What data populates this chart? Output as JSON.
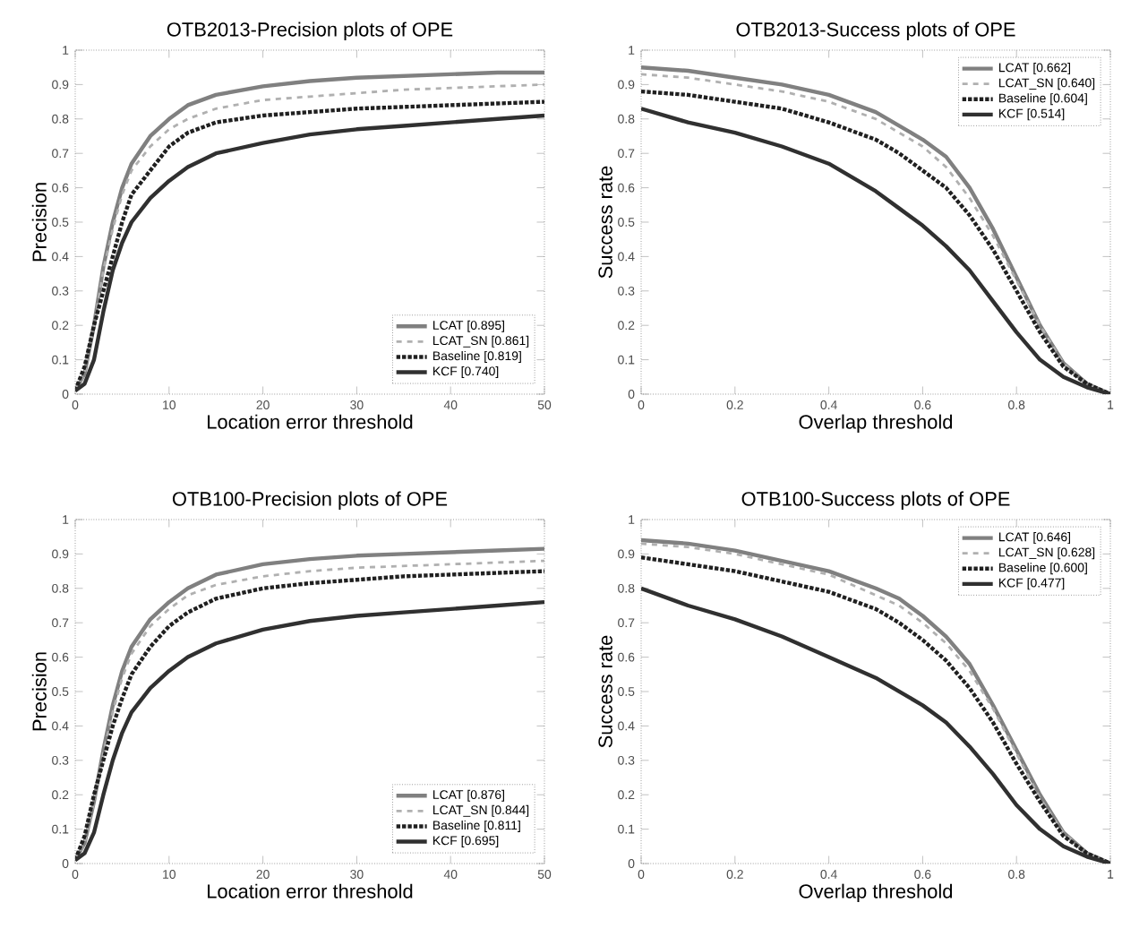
{
  "chart_data": [
    {
      "type": "line",
      "title": "OTB2013-Precision plots of OPE",
      "xlabel": "Location error threshold",
      "ylabel": "Precision",
      "xlim": [
        0,
        50
      ],
      "ylim": [
        0,
        1
      ],
      "xticks": [
        0,
        10,
        20,
        30,
        40,
        50
      ],
      "yticks": [
        0,
        0.1,
        0.2,
        0.3,
        0.4,
        0.5,
        0.6,
        0.7,
        0.8,
        0.9,
        1
      ],
      "legend": "bottom right",
      "x": [
        0,
        1,
        2,
        3,
        4,
        5,
        6,
        8,
        10,
        12,
        15,
        20,
        25,
        30,
        35,
        40,
        45,
        50
      ],
      "series": [
        {
          "name": "LCAT [0.895]",
          "color": "#808080",
          "line_style": "solid",
          "values": [
            0.01,
            0.06,
            0.2,
            0.37,
            0.5,
            0.6,
            0.67,
            0.75,
            0.8,
            0.84,
            0.87,
            0.895,
            0.91,
            0.92,
            0.925,
            0.93,
            0.935,
            0.935
          ]
        },
        {
          "name": "LCAT_SN [0.861]",
          "color": "#b0b0b0",
          "line_style": "dashed",
          "values": [
            0.01,
            0.06,
            0.2,
            0.36,
            0.48,
            0.58,
            0.65,
            0.72,
            0.77,
            0.8,
            0.83,
            0.855,
            0.865,
            0.875,
            0.885,
            0.89,
            0.895,
            0.9
          ]
        },
        {
          "name": "Baseline [0.819]",
          "color": "#202020",
          "line_style": "dotted",
          "values": [
            0.01,
            0.08,
            0.2,
            0.3,
            0.4,
            0.5,
            0.58,
            0.65,
            0.72,
            0.76,
            0.79,
            0.81,
            0.82,
            0.83,
            0.835,
            0.84,
            0.845,
            0.85
          ]
        },
        {
          "name": "KCF [0.740]",
          "color": "#303030",
          "line_style": "solid",
          "values": [
            0.01,
            0.03,
            0.1,
            0.24,
            0.36,
            0.44,
            0.5,
            0.57,
            0.62,
            0.66,
            0.7,
            0.73,
            0.755,
            0.77,
            0.78,
            0.79,
            0.8,
            0.81
          ]
        }
      ]
    },
    {
      "type": "line",
      "title": "OTB2013-Success plots of OPE",
      "xlabel": "Overlap threshold",
      "ylabel": "Success rate",
      "xlim": [
        0,
        1
      ],
      "ylim": [
        0,
        1
      ],
      "xticks": [
        0,
        0.2,
        0.4,
        0.6,
        0.8,
        1
      ],
      "yticks": [
        0,
        0.1,
        0.2,
        0.3,
        0.4,
        0.5,
        0.6,
        0.7,
        0.8,
        0.9,
        1
      ],
      "legend": "top right",
      "x": [
        0,
        0.1,
        0.2,
        0.3,
        0.4,
        0.5,
        0.55,
        0.6,
        0.65,
        0.7,
        0.75,
        0.8,
        0.85,
        0.9,
        0.95,
        1
      ],
      "series": [
        {
          "name": "LCAT [0.662]",
          "color": "#808080",
          "line_style": "solid",
          "values": [
            0.95,
            0.94,
            0.92,
            0.9,
            0.87,
            0.82,
            0.78,
            0.74,
            0.69,
            0.6,
            0.48,
            0.34,
            0.2,
            0.09,
            0.03,
            0
          ]
        },
        {
          "name": "LCAT_SN [0.640]",
          "color": "#b0b0b0",
          "line_style": "dashed",
          "values": [
            0.93,
            0.92,
            0.9,
            0.88,
            0.85,
            0.8,
            0.76,
            0.72,
            0.66,
            0.57,
            0.46,
            0.33,
            0.2,
            0.09,
            0.03,
            0
          ]
        },
        {
          "name": "Baseline [0.604]",
          "color": "#202020",
          "line_style": "dotted",
          "values": [
            0.88,
            0.87,
            0.85,
            0.83,
            0.79,
            0.74,
            0.7,
            0.65,
            0.6,
            0.52,
            0.42,
            0.3,
            0.18,
            0.08,
            0.03,
            0
          ]
        },
        {
          "name": "KCF [0.514]",
          "color": "#303030",
          "line_style": "solid",
          "values": [
            0.83,
            0.79,
            0.76,
            0.72,
            0.67,
            0.59,
            0.54,
            0.49,
            0.43,
            0.36,
            0.27,
            0.18,
            0.1,
            0.05,
            0.02,
            0
          ]
        }
      ]
    },
    {
      "type": "line",
      "title": "OTB100-Precision plots of OPE",
      "xlabel": "Location error threshold",
      "ylabel": "Precision",
      "xlim": [
        0,
        50
      ],
      "ylim": [
        0,
        1
      ],
      "xticks": [
        0,
        10,
        20,
        30,
        40,
        50
      ],
      "yticks": [
        0,
        0.1,
        0.2,
        0.3,
        0.4,
        0.5,
        0.6,
        0.7,
        0.8,
        0.9,
        1
      ],
      "legend": "bottom right",
      "x": [
        0,
        1,
        2,
        3,
        4,
        5,
        6,
        8,
        10,
        12,
        15,
        20,
        25,
        30,
        35,
        40,
        45,
        50
      ],
      "series": [
        {
          "name": "LCAT [0.876]",
          "color": "#808080",
          "line_style": "solid",
          "values": [
            0.01,
            0.06,
            0.18,
            0.33,
            0.46,
            0.56,
            0.63,
            0.71,
            0.76,
            0.8,
            0.84,
            0.87,
            0.885,
            0.895,
            0.9,
            0.905,
            0.91,
            0.915
          ]
        },
        {
          "name": "LCAT_SN [0.844]",
          "color": "#b0b0b0",
          "line_style": "dashed",
          "values": [
            0.01,
            0.06,
            0.18,
            0.32,
            0.44,
            0.54,
            0.61,
            0.69,
            0.74,
            0.78,
            0.81,
            0.835,
            0.85,
            0.86,
            0.865,
            0.87,
            0.875,
            0.88
          ]
        },
        {
          "name": "Baseline [0.811]",
          "color": "#202020",
          "line_style": "dotted",
          "values": [
            0.01,
            0.08,
            0.2,
            0.3,
            0.4,
            0.48,
            0.55,
            0.63,
            0.69,
            0.73,
            0.77,
            0.8,
            0.815,
            0.825,
            0.835,
            0.84,
            0.845,
            0.85
          ]
        },
        {
          "name": "KCF [0.695]",
          "color": "#303030",
          "line_style": "solid",
          "values": [
            0.01,
            0.03,
            0.09,
            0.2,
            0.3,
            0.38,
            0.44,
            0.51,
            0.56,
            0.6,
            0.64,
            0.68,
            0.705,
            0.72,
            0.73,
            0.74,
            0.75,
            0.76
          ]
        }
      ]
    },
    {
      "type": "line",
      "title": "OTB100-Success plots of OPE",
      "xlabel": "Overlap threshold",
      "ylabel": "Success rate",
      "xlim": [
        0,
        1
      ],
      "ylim": [
        0,
        1
      ],
      "xticks": [
        0,
        0.2,
        0.4,
        0.6,
        0.8,
        1
      ],
      "yticks": [
        0,
        0.1,
        0.2,
        0.3,
        0.4,
        0.5,
        0.6,
        0.7,
        0.8,
        0.9,
        1
      ],
      "legend": "top right",
      "x": [
        0,
        0.1,
        0.2,
        0.3,
        0.4,
        0.5,
        0.55,
        0.6,
        0.65,
        0.7,
        0.75,
        0.8,
        0.85,
        0.9,
        0.95,
        1
      ],
      "series": [
        {
          "name": "LCAT [0.646]",
          "color": "#808080",
          "line_style": "solid",
          "values": [
            0.94,
            0.93,
            0.91,
            0.88,
            0.85,
            0.8,
            0.77,
            0.72,
            0.66,
            0.58,
            0.46,
            0.33,
            0.2,
            0.09,
            0.03,
            0
          ]
        },
        {
          "name": "LCAT_SN [0.628]",
          "color": "#b0b0b0",
          "line_style": "dashed",
          "values": [
            0.93,
            0.92,
            0.9,
            0.87,
            0.84,
            0.78,
            0.75,
            0.7,
            0.64,
            0.56,
            0.45,
            0.32,
            0.19,
            0.09,
            0.03,
            0
          ]
        },
        {
          "name": "Baseline [0.600]",
          "color": "#202020",
          "line_style": "dotted",
          "values": [
            0.89,
            0.87,
            0.85,
            0.82,
            0.79,
            0.74,
            0.7,
            0.65,
            0.59,
            0.51,
            0.41,
            0.29,
            0.18,
            0.08,
            0.03,
            0
          ]
        },
        {
          "name": "KCF [0.477]",
          "color": "#303030",
          "line_style": "solid",
          "values": [
            0.8,
            0.75,
            0.71,
            0.66,
            0.6,
            0.54,
            0.5,
            0.46,
            0.41,
            0.34,
            0.26,
            0.17,
            0.1,
            0.05,
            0.02,
            0
          ]
        }
      ]
    }
  ]
}
